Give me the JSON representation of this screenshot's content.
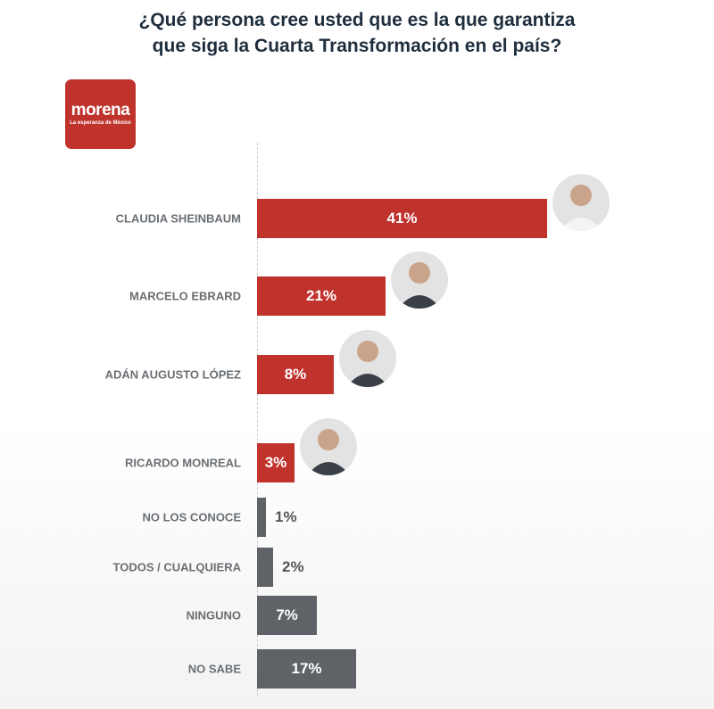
{
  "chart_data": {
    "type": "bar",
    "orientation": "horizontal",
    "title": "¿Qué persona cree usted que es la que garantiza que siga la Cuarta Transformación en el país?",
    "categories": [
      "CLAUDIA SHEINBAUM",
      "MARCELO EBRARD",
      "ADÁN AUGUSTO LÓPEZ",
      "RICARDO MONREAL",
      "NO LOS CONOCE",
      "TODOS / CUALQUIERA",
      "NINGUNO",
      "NO SABE"
    ],
    "values": [
      41,
      21,
      8,
      3,
      1,
      2,
      7,
      17
    ],
    "labels": [
      "41%",
      "21%",
      "8%",
      "3%",
      "1%",
      "2%",
      "7%",
      "17%"
    ],
    "colors": [
      "#c0322c",
      "#c0322c",
      "#c0322c",
      "#c0322c",
      "#5f6266",
      "#5f6266",
      "#5f6266",
      "#5f6266"
    ],
    "has_photo": [
      true,
      true,
      true,
      true,
      false,
      false,
      false,
      false
    ],
    "xlabel": "",
    "ylabel": ""
  },
  "logo": {
    "name": "morena",
    "tagline": "La esperanza de México"
  }
}
